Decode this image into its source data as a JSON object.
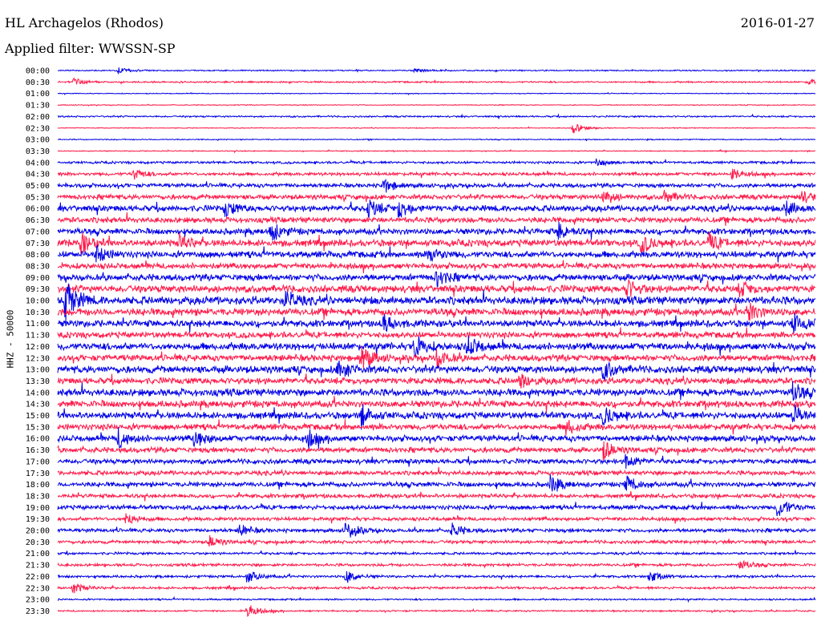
{
  "header": {
    "station": "HL Archagelos (Rhodos)",
    "date": "2016-01-27",
    "filter": "Applied filter: WWSSN-SP"
  },
  "channel_label": "HHZ - 50000",
  "colors": {
    "even": "#0000e6",
    "odd": "#ff1a4a"
  },
  "chart_data": {
    "type": "line",
    "title": "HL Archagelos (Rhodos)",
    "subtitle": "Applied filter: WWSSN-SP",
    "ylabel": "HHZ - 50000",
    "categories": [
      "00:00",
      "00:30",
      "01:00",
      "01:30",
      "02:00",
      "02:30",
      "03:00",
      "03:30",
      "04:00",
      "04:30",
      "05:00",
      "05:30",
      "06:00",
      "06:30",
      "07:00",
      "07:30",
      "08:00",
      "08:30",
      "09:00",
      "09:30",
      "10:00",
      "10:30",
      "11:00",
      "11:30",
      "12:00",
      "12:30",
      "13:00",
      "13:30",
      "14:00",
      "14:30",
      "15:00",
      "15:30",
      "16:00",
      "16:30",
      "17:00",
      "17:30",
      "18:00",
      "18:30",
      "19:00",
      "19:30",
      "20:00",
      "20:30",
      "21:00",
      "21:30",
      "22:00",
      "22:30",
      "23:00",
      "23:30"
    ],
    "noise_level": [
      0.6,
      0.8,
      0.4,
      0.4,
      0.8,
      0.4,
      0.5,
      0.5,
      1.2,
      1.6,
      2.0,
      2.4,
      3.0,
      2.8,
      3.0,
      3.4,
      3.2,
      2.8,
      3.2,
      3.6,
      4.0,
      3.6,
      3.4,
      3.0,
      3.6,
      3.2,
      3.6,
      3.2,
      3.6,
      3.4,
      3.4,
      3.0,
      3.0,
      2.6,
      2.4,
      2.2,
      2.4,
      2.0,
      2.2,
      1.8,
      1.8,
      1.6,
      1.2,
      1.4,
      1.2,
      1.2,
      0.8,
      0.8
    ],
    "events": [
      {
        "row": "00:00",
        "x": 0.08,
        "amp": 4
      },
      {
        "row": "00:00",
        "x": 0.47,
        "amp": 3
      },
      {
        "row": "00:30",
        "x": 0.02,
        "amp": 6
      },
      {
        "row": "00:30",
        "x": 0.99,
        "amp": 4
      },
      {
        "row": "02:30",
        "x": 0.68,
        "amp": 8
      },
      {
        "row": "04:00",
        "x": 0.71,
        "amp": 5
      },
      {
        "row": "04:30",
        "x": 0.1,
        "amp": 7
      },
      {
        "row": "04:30",
        "x": 0.89,
        "amp": 7
      },
      {
        "row": "05:00",
        "x": 0.43,
        "amp": 9
      },
      {
        "row": "05:30",
        "x": 0.72,
        "amp": 10
      },
      {
        "row": "05:30",
        "x": 0.8,
        "amp": 8
      },
      {
        "row": "05:30",
        "x": 0.98,
        "amp": 8
      },
      {
        "row": "06:00",
        "x": 0.22,
        "amp": 10
      },
      {
        "row": "06:00",
        "x": 0.41,
        "amp": 12
      },
      {
        "row": "06:00",
        "x": 0.45,
        "amp": 12
      },
      {
        "row": "06:00",
        "x": 0.96,
        "amp": 10
      },
      {
        "row": "07:00",
        "x": 0.28,
        "amp": 13
      },
      {
        "row": "07:00",
        "x": 0.66,
        "amp": 11
      },
      {
        "row": "07:30",
        "x": 0.03,
        "amp": 13
      },
      {
        "row": "07:30",
        "x": 0.16,
        "amp": 9
      },
      {
        "row": "07:30",
        "x": 0.77,
        "amp": 12
      },
      {
        "row": "07:30",
        "x": 0.86,
        "amp": 10
      },
      {
        "row": "08:00",
        "x": 0.05,
        "amp": 11
      },
      {
        "row": "08:00",
        "x": 0.49,
        "amp": 10
      },
      {
        "row": "09:00",
        "x": 0.5,
        "amp": 11
      },
      {
        "row": "09:30",
        "x": 0.75,
        "amp": 12
      },
      {
        "row": "09:30",
        "x": 0.9,
        "amp": 9
      },
      {
        "row": "10:00",
        "x": 0.01,
        "amp": 28
      },
      {
        "row": "10:00",
        "x": 0.3,
        "amp": 12
      },
      {
        "row": "10:30",
        "x": 0.91,
        "amp": 12
      },
      {
        "row": "11:00",
        "x": 0.43,
        "amp": 11
      },
      {
        "row": "11:00",
        "x": 0.97,
        "amp": 12
      },
      {
        "row": "12:00",
        "x": 0.47,
        "amp": 14
      },
      {
        "row": "12:00",
        "x": 0.54,
        "amp": 12
      },
      {
        "row": "12:30",
        "x": 0.4,
        "amp": 16
      },
      {
        "row": "12:30",
        "x": 0.5,
        "amp": 12
      },
      {
        "row": "13:00",
        "x": 0.37,
        "amp": 12
      },
      {
        "row": "13:00",
        "x": 0.72,
        "amp": 12
      },
      {
        "row": "13:30",
        "x": 0.61,
        "amp": 10
      },
      {
        "row": "14:00",
        "x": 0.97,
        "amp": 11
      },
      {
        "row": "15:00",
        "x": 0.4,
        "amp": 14
      },
      {
        "row": "15:00",
        "x": 0.72,
        "amp": 12
      },
      {
        "row": "15:00",
        "x": 0.97,
        "amp": 12
      },
      {
        "row": "15:30",
        "x": 0.67,
        "amp": 10
      },
      {
        "row": "16:00",
        "x": 0.08,
        "amp": 12
      },
      {
        "row": "16:00",
        "x": 0.18,
        "amp": 12
      },
      {
        "row": "16:00",
        "x": 0.33,
        "amp": 11
      },
      {
        "row": "16:30",
        "x": 0.72,
        "amp": 12
      },
      {
        "row": "17:00",
        "x": 0.75,
        "amp": 10
      },
      {
        "row": "18:00",
        "x": 0.65,
        "amp": 11
      },
      {
        "row": "18:00",
        "x": 0.75,
        "amp": 11
      },
      {
        "row": "19:00",
        "x": 0.95,
        "amp": 14
      },
      {
        "row": "19:30",
        "x": 0.09,
        "amp": 8
      },
      {
        "row": "20:00",
        "x": 0.24,
        "amp": 8
      },
      {
        "row": "20:00",
        "x": 0.52,
        "amp": 9
      },
      {
        "row": "20:00",
        "x": 0.38,
        "amp": 12
      },
      {
        "row": "20:30",
        "x": 0.2,
        "amp": 8
      },
      {
        "row": "22:00",
        "x": 0.25,
        "amp": 9
      },
      {
        "row": "22:00",
        "x": 0.38,
        "amp": 9
      },
      {
        "row": "22:00",
        "x": 0.78,
        "amp": 8
      },
      {
        "row": "21:30",
        "x": 0.9,
        "amp": 7
      },
      {
        "row": "22:30",
        "x": 0.02,
        "amp": 7
      },
      {
        "row": "23:30",
        "x": 0.25,
        "amp": 10
      }
    ]
  }
}
